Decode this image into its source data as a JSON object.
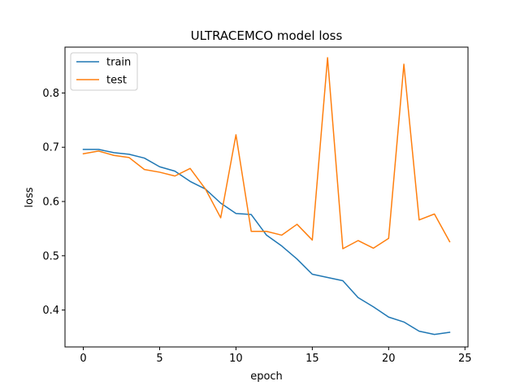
{
  "chart_data": {
    "type": "line",
    "title": "ULTRACEMCO model loss",
    "xlabel": "epoch",
    "ylabel": "loss",
    "xlim": [
      -1.2,
      25.2
    ],
    "ylim": [
      0.332,
      0.8845
    ],
    "xticks": [
      0,
      5,
      10,
      15,
      20,
      25
    ],
    "yticks": [
      0.4,
      0.5,
      0.6,
      0.7,
      0.8
    ],
    "grid": false,
    "legend_position": "top-left",
    "x": [
      0,
      1,
      2,
      3,
      4,
      5,
      6,
      7,
      8,
      9,
      10,
      11,
      12,
      13,
      14,
      15,
      16,
      17,
      18,
      19,
      20,
      21,
      22,
      23,
      24
    ],
    "series": [
      {
        "name": "train",
        "color": "#1f77b4",
        "values": [
          0.696,
          0.696,
          0.69,
          0.687,
          0.68,
          0.664,
          0.656,
          0.637,
          0.623,
          0.597,
          0.578,
          0.576,
          0.538,
          0.518,
          0.494,
          0.466,
          0.46,
          0.454,
          0.423,
          0.406,
          0.387,
          0.378,
          0.361,
          0.355,
          0.359
        ]
      },
      {
        "name": "test",
        "color": "#ff7f0e",
        "values": [
          0.688,
          0.693,
          0.685,
          0.681,
          0.659,
          0.654,
          0.647,
          0.661,
          0.623,
          0.57,
          0.723,
          0.545,
          0.545,
          0.538,
          0.558,
          0.529,
          0.865,
          0.513,
          0.528,
          0.514,
          0.532,
          0.853,
          0.566,
          0.577,
          0.526
        ]
      }
    ]
  }
}
